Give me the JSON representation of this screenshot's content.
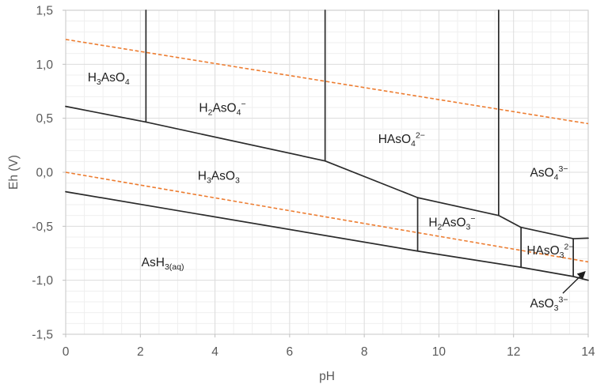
{
  "chart_data": {
    "type": "line",
    "subtype": "pourbaix-eh-ph-diagram",
    "title": "",
    "xlabel": "pH",
    "ylabel": "Eh (V)",
    "xlim": [
      0,
      14
    ],
    "ylim": [
      -1.5,
      1.5
    ],
    "x_ticks": {
      "values": [
        0,
        2,
        4,
        6,
        8,
        10,
        12,
        14
      ],
      "labels": [
        "0",
        "2",
        "4",
        "6",
        "8",
        "10",
        "12",
        "14"
      ]
    },
    "y_ticks": {
      "values": [
        1.5,
        1.0,
        0.5,
        0.0,
        -0.5,
        -1.0,
        -1.5
      ],
      "labels": [
        "1,5",
        "1,0",
        "0,5",
        "0,0",
        "-0,5",
        "-1,0",
        "-1,5"
      ]
    },
    "grid": {
      "on": true,
      "x_major_step": 2,
      "y_major_step": 0.5,
      "x_minor_step": 0.5,
      "y_minor_step": 0.1,
      "minor_color": "#efefef",
      "major_color": "#dcdcdc",
      "border_color": "#d0d0d0",
      "tick_color": "#bfbfbf"
    },
    "colors": {
      "boundary_line": "#2b2b2b",
      "water_line": "#ED7D31",
      "axis_text": "#595959",
      "label_text": "#1f1f1f"
    },
    "boundaries": [
      {
        "id": "asV-asIII-redox-boundary",
        "points": [
          [
            0,
            0.61
          ],
          [
            2.15,
            0.465
          ],
          [
            6.95,
            0.105
          ],
          [
            9.43,
            -0.235
          ],
          [
            11.6,
            -0.4
          ],
          [
            12.2,
            -0.51
          ],
          [
            13.6,
            -0.615
          ],
          [
            14,
            -0.61
          ]
        ]
      },
      {
        "id": "asIII-asH3-redox-boundary",
        "points": [
          [
            0,
            -0.18
          ],
          [
            9.43,
            -0.73
          ],
          [
            12.2,
            -0.88
          ],
          [
            13.6,
            -0.965
          ],
          [
            14,
            -1.0
          ]
        ]
      },
      {
        "id": "h3aso4-h2aso4-divider",
        "points": [
          [
            2.15,
            1.5
          ],
          [
            2.15,
            0.465
          ]
        ]
      },
      {
        "id": "h2aso4-haso4-divider",
        "points": [
          [
            6.95,
            1.5
          ],
          [
            6.95,
            0.105
          ]
        ]
      },
      {
        "id": "haso4-aso4-divider",
        "points": [
          [
            11.6,
            1.5
          ],
          [
            11.6,
            -0.4
          ]
        ]
      },
      {
        "id": "h3aso3-h2aso3-divider",
        "points": [
          [
            9.43,
            -0.235
          ],
          [
            9.43,
            -0.73
          ]
        ]
      },
      {
        "id": "h2aso3-haso3-divider",
        "points": [
          [
            12.2,
            -0.51
          ],
          [
            12.2,
            -0.88
          ]
        ]
      },
      {
        "id": "haso3-aso3-divider",
        "points": [
          [
            13.6,
            -0.615
          ],
          [
            13.6,
            -0.965
          ]
        ]
      }
    ],
    "water_lines": [
      {
        "id": "o2-h2o-stability-line",
        "style": "dashed",
        "points": [
          [
            0,
            1.23
          ],
          [
            14,
            0.45
          ]
        ]
      },
      {
        "id": "h2o-h2-stability-line",
        "style": "dashed",
        "points": [
          [
            0,
            0.0
          ],
          [
            14,
            -0.83
          ]
        ]
      }
    ],
    "region_labels": [
      {
        "id": "h3aso4",
        "text": "H₃AsO₄",
        "ph": 1.15,
        "eh": 0.88,
        "segments": [
          {
            "t": "H"
          },
          {
            "t": "3",
            "m": "sub"
          },
          {
            "t": "AsO"
          },
          {
            "t": "4",
            "m": "sub"
          }
        ]
      },
      {
        "id": "h2aso4",
        "text": "H₂AsO₄⁻",
        "ph": 4.2,
        "eh": 0.6,
        "segments": [
          {
            "t": "H"
          },
          {
            "t": "2",
            "m": "sub"
          },
          {
            "t": "AsO"
          },
          {
            "t": "4",
            "m": "sub"
          },
          {
            "t": "−",
            "m": "sup"
          }
        ]
      },
      {
        "id": "haso4",
        "text": "HAsO₄²⁻",
        "ph": 9.0,
        "eh": 0.31,
        "segments": [
          {
            "t": "HAsO"
          },
          {
            "t": "4",
            "m": "sub"
          },
          {
            "t": "2−",
            "m": "sup"
          }
        ]
      },
      {
        "id": "aso4",
        "text": "AsO₄³⁻",
        "ph": 12.95,
        "eh": 0.0,
        "segments": [
          {
            "t": "AsO"
          },
          {
            "t": "4",
            "m": "sub"
          },
          {
            "t": "3−",
            "m": "sup"
          }
        ]
      },
      {
        "id": "h3aso3",
        "text": "H₃AsO₃",
        "ph": 4.1,
        "eh": -0.03,
        "segments": [
          {
            "t": "H"
          },
          {
            "t": "3",
            "m": "sub"
          },
          {
            "t": "AsO"
          },
          {
            "t": "3",
            "m": "sub"
          }
        ]
      },
      {
        "id": "h2aso3",
        "text": "H₂AsO₃⁻",
        "ph": 10.35,
        "eh": -0.46,
        "segments": [
          {
            "t": "H"
          },
          {
            "t": "2",
            "m": "sub"
          },
          {
            "t": "AsO"
          },
          {
            "t": "3",
            "m": "sub"
          },
          {
            "t": "−",
            "m": "sup"
          }
        ]
      },
      {
        "id": "haso3",
        "text": "HAsO₃²⁻",
        "ph": 12.98,
        "eh": -0.72,
        "segments": [
          {
            "t": "HAsO"
          },
          {
            "t": "3",
            "m": "sub"
          },
          {
            "t": "2−",
            "m": "sup"
          }
        ]
      },
      {
        "id": "ash3",
        "text": "AsH₃(aq)",
        "ph": 2.6,
        "eh": -0.83,
        "segments": [
          {
            "t": "AsH"
          },
          {
            "t": "3(aq)",
            "m": "sub"
          }
        ]
      }
    ],
    "annotations": [
      {
        "id": "aso3",
        "text": "AsO₃³⁻",
        "ph": 12.95,
        "eh": -1.21,
        "segments": [
          {
            "t": "AsO"
          },
          {
            "t": "3",
            "m": "sub"
          },
          {
            "t": "3−",
            "m": "sup"
          }
        ],
        "arrow": {
          "from": [
            13.32,
            -1.12
          ],
          "to": [
            13.9,
            -0.925
          ]
        }
      }
    ]
  }
}
